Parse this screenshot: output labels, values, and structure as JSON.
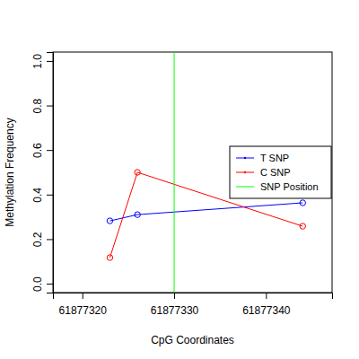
{
  "chart_data": {
    "type": "line",
    "x_label": "CpG Coordinates",
    "y_label": "Methylation Frequency",
    "xlim": [
      61877316.8,
      61877347.2
    ],
    "xticks": [
      61877320,
      61877330,
      61877340
    ],
    "ylim": [
      -0.04,
      1.04
    ],
    "yticks": [
      {
        "value": 0,
        "label": "0.0"
      },
      0.2,
      0.4,
      0.6,
      0.8,
      {
        "value": 1,
        "label": "1.0"
      }
    ],
    "legend": "right",
    "marker": "circle",
    "series": [
      {
        "name": "T SNP",
        "color": "#0000ff",
        "type": "line",
        "x": [
          61877323,
          61877326,
          61877344
        ],
        "values": [
          0.282,
          0.31,
          0.363
        ]
      },
      {
        "name": "C SNP",
        "color": "#ff0000",
        "type": "line",
        "x": [
          61877323,
          61877326,
          61877344
        ],
        "values": [
          0.117,
          0.5,
          0.258
        ]
      },
      {
        "name": "SNP Position",
        "color": "#00ff00",
        "type": "vline",
        "x": [
          61877330
        ]
      }
    ]
  }
}
